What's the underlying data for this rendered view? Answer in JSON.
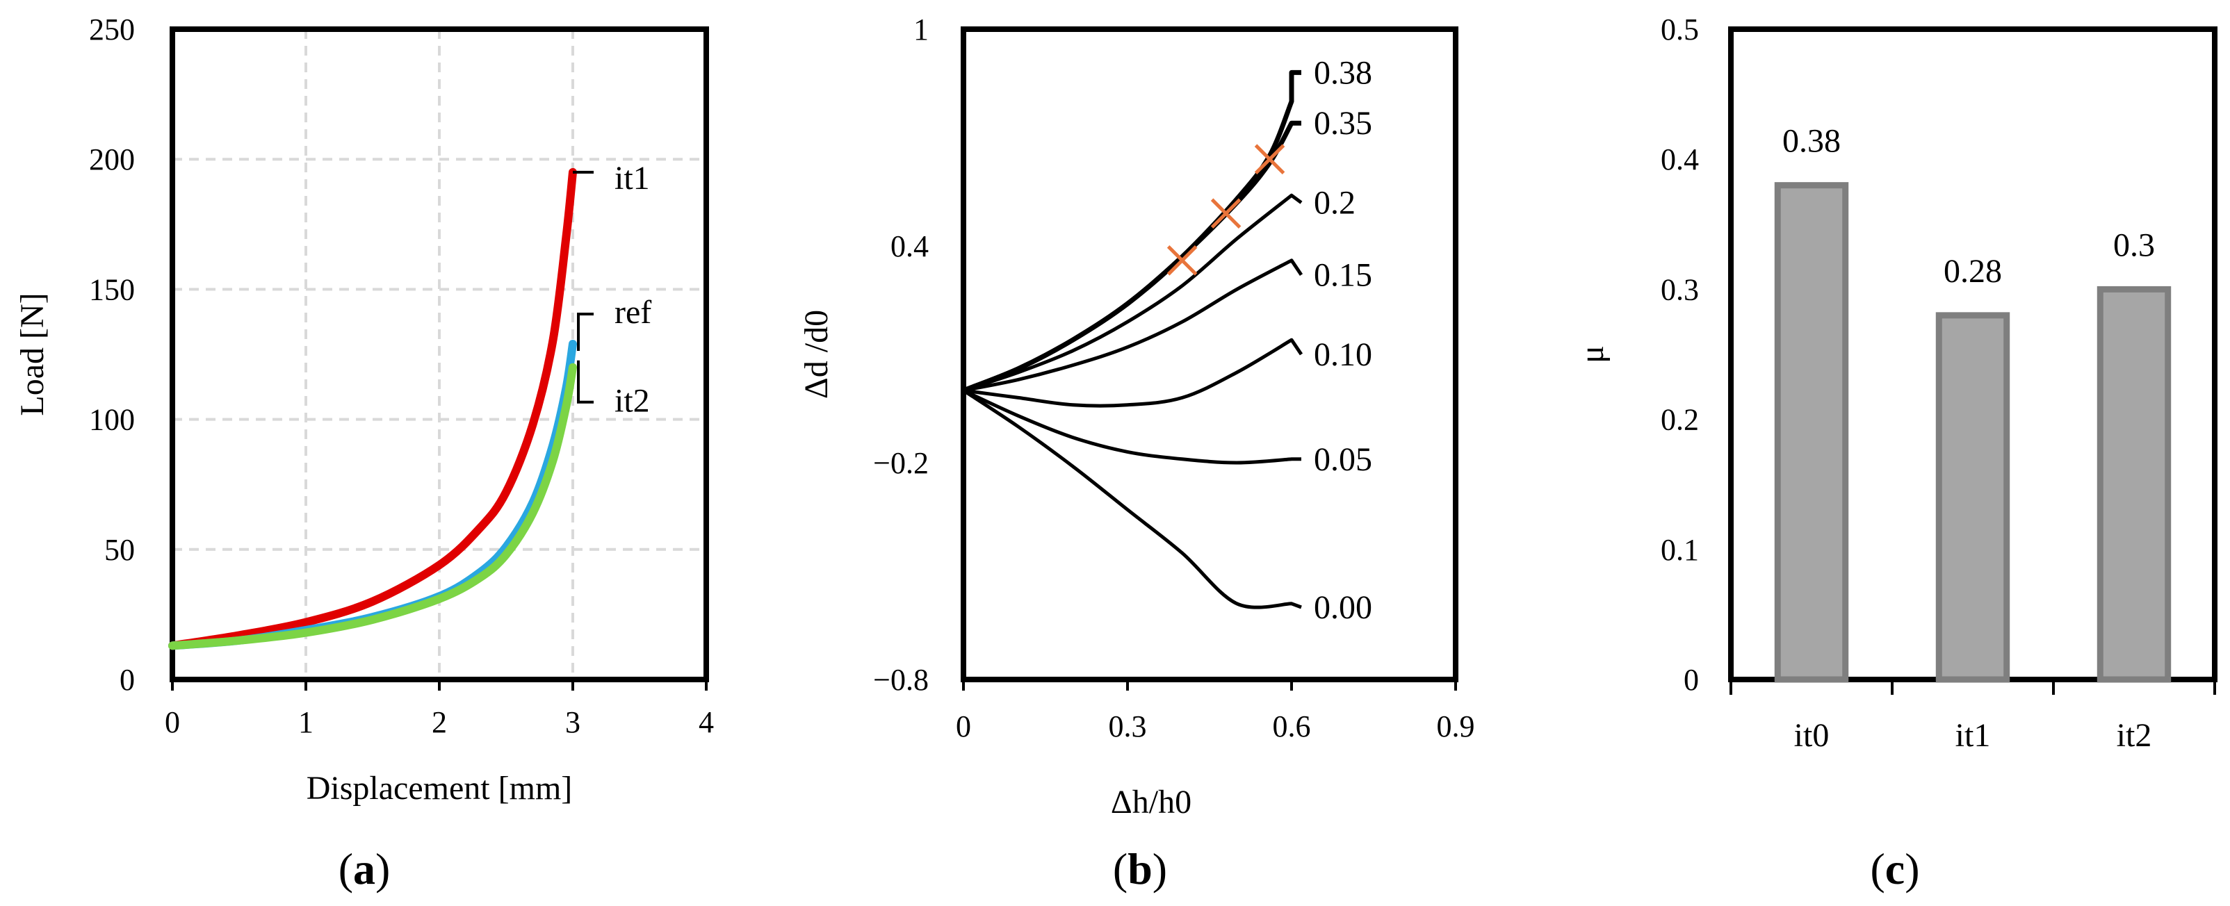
{
  "chart_data": [
    {
      "id": "a",
      "type": "line",
      "panel_label": "a",
      "xlabel": "Displacement [mm]",
      "ylabel": "Load [N]",
      "xlim": [
        0,
        4
      ],
      "ylim": [
        0,
        250
      ],
      "xticks": [
        0,
        1,
        2,
        3,
        4
      ],
      "yticks": [
        0,
        50,
        100,
        150,
        200,
        250
      ],
      "grid": true,
      "series": [
        {
          "name": "it1",
          "label": "it1",
          "color": "#e00000",
          "x": [
            0,
            0.5,
            1.0,
            1.5,
            2.0,
            2.3,
            2.5,
            2.7,
            2.85,
            2.95,
            3.0
          ],
          "y": [
            13,
            17,
            22,
            30,
            44,
            58,
            72,
            98,
            130,
            170,
            195
          ]
        },
        {
          "name": "ref",
          "label": "ref",
          "color": "#2aa7e0",
          "x": [
            0,
            0.5,
            1.0,
            1.5,
            2.0,
            2.3,
            2.5,
            2.7,
            2.85,
            2.95,
            3.0
          ],
          "y": [
            13,
            15,
            19,
            24,
            32,
            41,
            51,
            68,
            90,
            112,
            129
          ]
        },
        {
          "name": "it2",
          "label": "it2",
          "color": "#7cd445",
          "x": [
            0,
            0.5,
            1.0,
            1.5,
            2.0,
            2.3,
            2.5,
            2.7,
            2.85,
            2.95,
            3.0
          ],
          "y": [
            13,
            15,
            18,
            23,
            31,
            39,
            48,
            64,
            84,
            105,
            120
          ]
        }
      ]
    },
    {
      "id": "b",
      "type": "line",
      "panel_label": "b",
      "xlabel": "Δh/h0",
      "ylabel": "Δd /d0",
      "xlim": [
        0,
        0.9
      ],
      "ylim": [
        -0.8,
        1
      ],
      "xticks": [
        0,
        0.3,
        0.6,
        0.9
      ],
      "xtick_labels": [
        "0",
        "0.3",
        "0.6",
        "0.9"
      ],
      "yticks": [
        -0.8,
        -0.2,
        0.4,
        1
      ],
      "ytick_labels": [
        "−0.8",
        "−0.2",
        "0.4",
        "1"
      ],
      "grid": false,
      "series": [
        {
          "name": "0.38",
          "label": "0.38",
          "x": [
            0,
            0.1,
            0.2,
            0.3,
            0.4,
            0.5,
            0.56,
            0.6
          ],
          "y": [
            0,
            0.06,
            0.14,
            0.24,
            0.37,
            0.53,
            0.65,
            0.8
          ]
        },
        {
          "name": "0.35",
          "label": "0.35",
          "x": [
            0,
            0.1,
            0.2,
            0.3,
            0.4,
            0.5,
            0.56,
            0.6
          ],
          "y": [
            0,
            0.06,
            0.14,
            0.24,
            0.37,
            0.52,
            0.63,
            0.74
          ]
        },
        {
          "name": "0.2",
          "label": "0.2",
          "x": [
            0,
            0.1,
            0.2,
            0.3,
            0.4,
            0.5,
            0.6
          ],
          "y": [
            0,
            0.05,
            0.11,
            0.19,
            0.29,
            0.42,
            0.54
          ]
        },
        {
          "name": "0.15",
          "label": "0.15",
          "x": [
            0,
            0.1,
            0.2,
            0.3,
            0.4,
            0.5,
            0.6
          ],
          "y": [
            0,
            0.03,
            0.07,
            0.12,
            0.19,
            0.28,
            0.36
          ]
        },
        {
          "name": "0.10",
          "label": "0.10",
          "x": [
            0,
            0.1,
            0.2,
            0.3,
            0.4,
            0.5,
            0.6
          ],
          "y": [
            0,
            -0.02,
            -0.04,
            -0.04,
            -0.02,
            0.05,
            0.14
          ]
        },
        {
          "name": "0.05",
          "label": "0.05",
          "x": [
            0,
            0.1,
            0.2,
            0.3,
            0.4,
            0.5,
            0.6
          ],
          "y": [
            0,
            -0.07,
            -0.13,
            -0.17,
            -0.19,
            -0.2,
            -0.19
          ]
        },
        {
          "name": "0.00",
          "label": "0.00",
          "x": [
            0,
            0.1,
            0.2,
            0.3,
            0.4,
            0.5,
            0.6
          ],
          "y": [
            0,
            -0.1,
            -0.21,
            -0.33,
            -0.45,
            -0.59,
            -0.59
          ]
        }
      ],
      "markers": [
        {
          "x": 0.4,
          "y": 0.36,
          "color": "#e8743b"
        },
        {
          "x": 0.48,
          "y": 0.49,
          "color": "#e8743b"
        },
        {
          "x": 0.56,
          "y": 0.64,
          "color": "#e8743b"
        }
      ]
    },
    {
      "id": "c",
      "type": "bar",
      "panel_label": "c",
      "xlabel": "",
      "ylabel": "μ",
      "categories": [
        "it0",
        "it1",
        "it2"
      ],
      "values": [
        0.38,
        0.28,
        0.3
      ],
      "data_labels": [
        "0.38",
        "0.28",
        "0.3"
      ],
      "ylim": [
        0,
        0.5
      ],
      "yticks": [
        0,
        0.1,
        0.2,
        0.3,
        0.4,
        0.5
      ],
      "ytick_labels": [
        "0",
        "0.1",
        "0.2",
        "0.3",
        "0.4",
        "0.5"
      ],
      "grid": false,
      "bar_fill": "#a6a6a6",
      "bar_edge": "#7f7f7f"
    }
  ]
}
